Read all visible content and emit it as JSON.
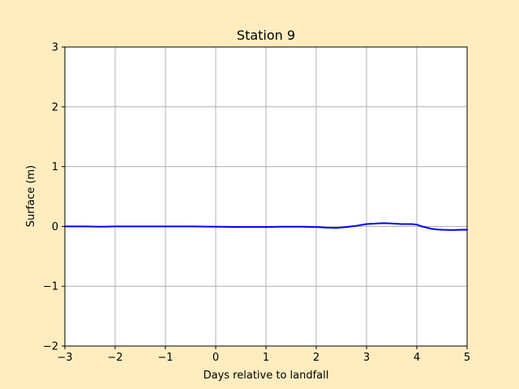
{
  "chart_data": {
    "type": "line",
    "title": "Station 9",
    "xlabel": "Days relative to landfall",
    "ylabel": "Surface (m)",
    "xlim": [
      -3,
      5
    ],
    "ylim": [
      -2,
      3
    ],
    "xticks": [
      -3,
      -2,
      -1,
      0,
      1,
      2,
      3,
      4,
      5
    ],
    "yticks": [
      -2,
      -1,
      0,
      1,
      2,
      3
    ],
    "xtick_labels": [
      "−3",
      "−2",
      "−1",
      "0",
      "1",
      "2",
      "3",
      "4",
      "5"
    ],
    "ytick_labels": [
      "−2",
      "−1",
      "0",
      "1",
      "2",
      "3"
    ],
    "grid": true,
    "colors": {
      "figure_background": "#ffedc0",
      "plot_background": "#ffffff",
      "series": "#0000ff",
      "grid": "#b0b0b0"
    },
    "series": [
      {
        "x": [
          -3.0,
          -2.6,
          -2.3,
          -2.0,
          -1.5,
          -1.0,
          -0.5,
          0.0,
          0.5,
          1.0,
          1.3,
          1.7,
          2.0,
          2.2,
          2.4,
          2.6,
          2.8,
          3.0,
          3.2,
          3.35,
          3.5,
          3.7,
          3.9,
          4.0,
          4.1,
          4.2,
          4.3,
          4.4,
          4.5,
          4.7,
          4.9,
          5.0
        ],
        "values": [
          0.0,
          0.0,
          -0.005,
          0.0,
          0.0,
          0.0,
          0.0,
          -0.005,
          -0.01,
          -0.01,
          -0.005,
          -0.005,
          -0.01,
          -0.02,
          -0.025,
          -0.01,
          0.01,
          0.04,
          0.05,
          0.055,
          0.05,
          0.04,
          0.04,
          0.03,
          0.0,
          -0.02,
          -0.04,
          -0.05,
          -0.055,
          -0.06,
          -0.055,
          -0.055
        ]
      }
    ]
  }
}
